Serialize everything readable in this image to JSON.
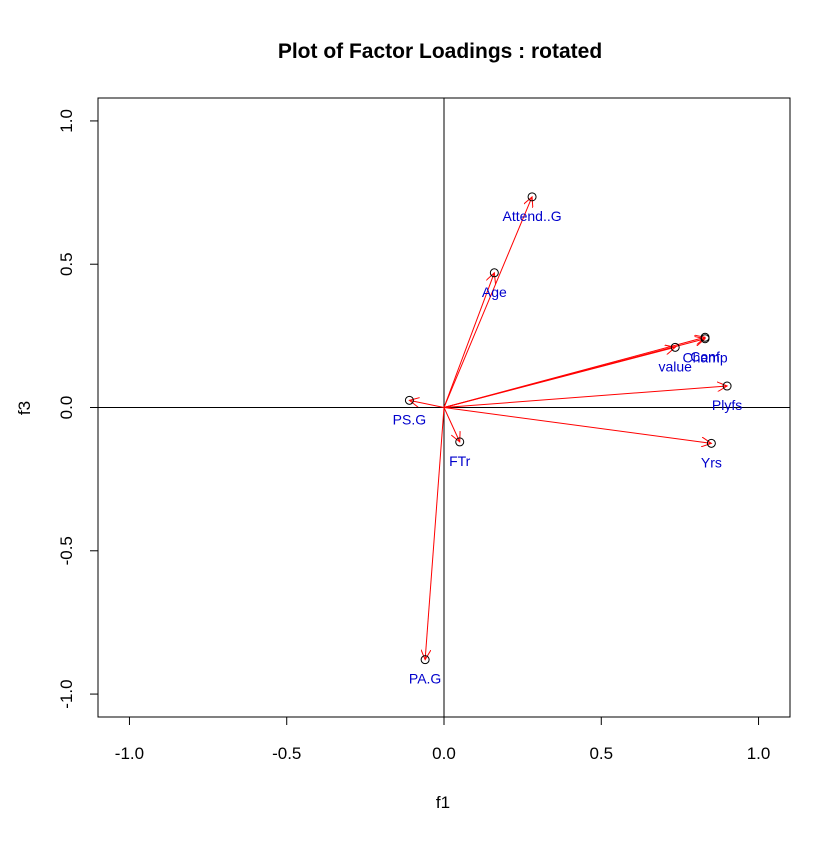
{
  "chart_data": {
    "type": "scatter",
    "title": "Plot of Factor Loadings : rotated",
    "xlabel": "f1",
    "ylabel": "f3",
    "xlim": [
      -1.1,
      1.1
    ],
    "ylim": [
      -1.08,
      1.08
    ],
    "x_ticks": [
      -1.0,
      -0.5,
      0.0,
      0.5,
      1.0
    ],
    "y_ticks": [
      -1.0,
      -0.5,
      0.0,
      0.5,
      1.0
    ],
    "x_tick_labels": [
      "-1.0",
      "-0.5",
      "0.0",
      "0.5",
      "1.0"
    ],
    "y_tick_labels": [
      "-1.0",
      "-0.5",
      "0.0",
      "0.5",
      "1.0"
    ],
    "reference_lines": {
      "x": 0,
      "y": 0
    },
    "grid": false,
    "arrows_from_origin": true,
    "arrow_color": "#ff0000",
    "label_color": "#0000cc",
    "points": [
      {
        "name": "Attend..G",
        "x": 0.28,
        "y": 0.735
      },
      {
        "name": "Age",
        "x": 0.16,
        "y": 0.47
      },
      {
        "name": "Champ",
        "x": 0.83,
        "y": 0.24
      },
      {
        "name": "Conf",
        "x": 0.83,
        "y": 0.245
      },
      {
        "name": "value",
        "x": 0.735,
        "y": 0.21
      },
      {
        "name": "Plyfs",
        "x": 0.9,
        "y": 0.075
      },
      {
        "name": "PS.G",
        "x": -0.11,
        "y": 0.025
      },
      {
        "name": "FTr",
        "x": 0.05,
        "y": -0.12
      },
      {
        "name": "Yrs",
        "x": 0.85,
        "y": -0.125
      },
      {
        "name": "PA.G",
        "x": -0.06,
        "y": -0.88
      }
    ]
  }
}
